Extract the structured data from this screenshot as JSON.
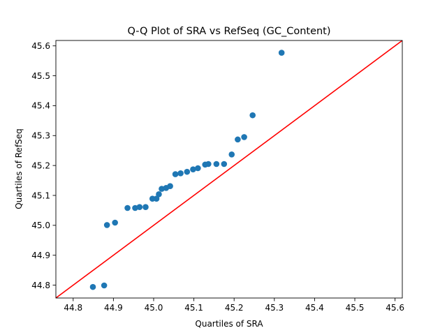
{
  "chart_data": {
    "type": "scatter",
    "title": "Q-Q Plot of SRA vs RefSeq (GC_Content)",
    "xlabel": "Quartiles of SRA",
    "ylabel": "Quartiles of RefSeq",
    "xlim": [
      44.757,
      45.618
    ],
    "ylim": [
      44.757,
      45.618
    ],
    "xticks": [
      "44.8",
      "44.9",
      "45.0",
      "45.1",
      "45.2",
      "45.3",
      "45.4",
      "45.5",
      "45.6"
    ],
    "yticks": [
      "44.8",
      "44.9",
      "45.0",
      "45.1",
      "45.2",
      "45.3",
      "45.4",
      "45.5",
      "45.6"
    ],
    "grid": false,
    "colors": {
      "points": "#1f77b4",
      "reference_line": "#ff0000"
    },
    "reference_line": {
      "from": [
        44.757,
        44.757
      ],
      "to": [
        45.618,
        45.618
      ]
    },
    "points": [
      {
        "x": 44.849,
        "y": 44.794
      },
      {
        "x": 44.877,
        "y": 44.799
      },
      {
        "x": 44.884,
        "y": 45.001
      },
      {
        "x": 44.904,
        "y": 45.009
      },
      {
        "x": 44.935,
        "y": 45.058
      },
      {
        "x": 44.954,
        "y": 45.058
      },
      {
        "x": 44.965,
        "y": 45.061
      },
      {
        "x": 44.98,
        "y": 45.061
      },
      {
        "x": 44.997,
        "y": 45.089
      },
      {
        "x": 45.007,
        "y": 45.089
      },
      {
        "x": 45.013,
        "y": 45.104
      },
      {
        "x": 45.02,
        "y": 45.122
      },
      {
        "x": 45.031,
        "y": 45.125
      },
      {
        "x": 45.041,
        "y": 45.131
      },
      {
        "x": 45.054,
        "y": 45.171
      },
      {
        "x": 45.067,
        "y": 45.174
      },
      {
        "x": 45.083,
        "y": 45.179
      },
      {
        "x": 45.098,
        "y": 45.187
      },
      {
        "x": 45.11,
        "y": 45.191
      },
      {
        "x": 45.128,
        "y": 45.203
      },
      {
        "x": 45.136,
        "y": 45.205
      },
      {
        "x": 45.156,
        "y": 45.205
      },
      {
        "x": 45.175,
        "y": 45.205
      },
      {
        "x": 45.194,
        "y": 45.237
      },
      {
        "x": 45.209,
        "y": 45.287
      },
      {
        "x": 45.225,
        "y": 45.295
      },
      {
        "x": 45.246,
        "y": 45.368
      },
      {
        "x": 45.318,
        "y": 45.577
      }
    ]
  }
}
